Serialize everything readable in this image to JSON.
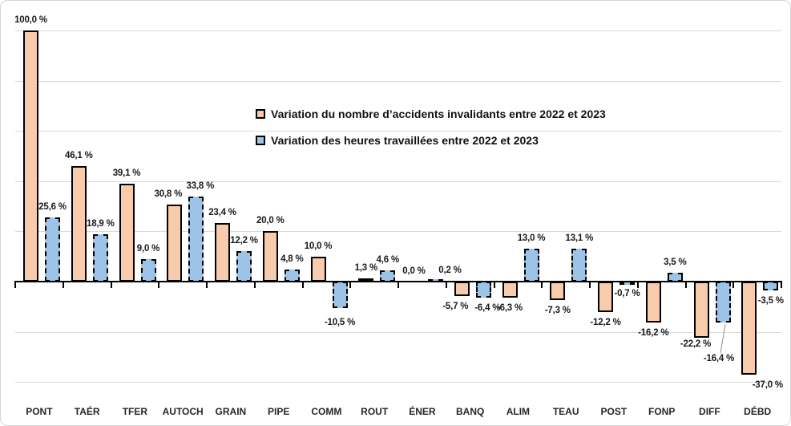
{
  "chart_data": {
    "type": "bar",
    "title": "",
    "categories": [
      "PONT",
      "TAÉR",
      "TFER",
      "AUTOCH",
      "GRAIN",
      "PIPE",
      "COMM",
      "ROUT",
      "ÉNER",
      "BANQ",
      "ALIM",
      "TEAU",
      "POST",
      "FONP",
      "DIFF",
      "DÉBD"
    ],
    "series": [
      {
        "name": "Variation du nombre d’accidents invalidants entre 2022 et 2023",
        "color": "#F8CBAD",
        "border_color": "#000000",
        "border_style": "solid",
        "values": [
          100.0,
          46.1,
          39.1,
          30.8,
          23.4,
          20.0,
          10.0,
          1.3,
          0.0,
          -5.7,
          -6.3,
          -7.3,
          -12.2,
          -16.2,
          -22.2,
          -37.0
        ],
        "labels": [
          "100,0 %",
          "46,1 %",
          "39,1 %",
          "30,8 %",
          "23,4 %",
          "20,0 %",
          "10,0 %",
          "1,3 %",
          "0,0 %",
          "-5,7 %",
          "-6,3 %",
          "-7,3 %",
          "-12,2 %",
          "-16,2 %",
          "-22,2 %",
          "-37,0 %"
        ]
      },
      {
        "name": "Variation des heures travaillées entre 2022 et 2023",
        "color": "#9DC3E6",
        "border_color": "#000000",
        "border_style": "dashed",
        "values": [
          25.6,
          18.9,
          9.0,
          33.8,
          12.2,
          4.8,
          -10.5,
          4.6,
          0.2,
          -6.4,
          13.0,
          13.1,
          -0.7,
          3.5,
          -16.4,
          -3.5
        ],
        "labels": [
          "25,6 %",
          "18,9 %",
          "9,0 %",
          "33,8 %",
          "12,2 %",
          "4,8 %",
          "-10,5 %",
          "4,6 %",
          "0,2 %",
          "-6,4 %",
          "13,0 %",
          "13,1 %",
          "-0,7 %",
          "3,5 %",
          "-16,4 %",
          "-3,5 %"
        ]
      }
    ],
    "xlabel": "",
    "ylabel": "",
    "ylim": [
      -40,
      100
    ],
    "grid": true,
    "gridline_step_pct": 20,
    "gridline_color": "#D9D9D9",
    "axis_color": "#000000",
    "legend_position": "inside top-center",
    "label_overrides": {
      "3_0": {
        "dx": -8
      },
      "3_1": {
        "dx": 5
      },
      "6_1": {
        "dy": 5
      },
      "8_1": {
        "dx": 18
      },
      "9_0": {
        "dx": -8
      },
      "9_1": {
        "dx": 5
      },
      "14_0": {
        "dx": -7,
        "dy": -5
      },
      "14_1": {
        "dx": -5,
        "dy": 32,
        "leader": true
      },
      "15_0": {
        "dx": 23
      }
    }
  }
}
